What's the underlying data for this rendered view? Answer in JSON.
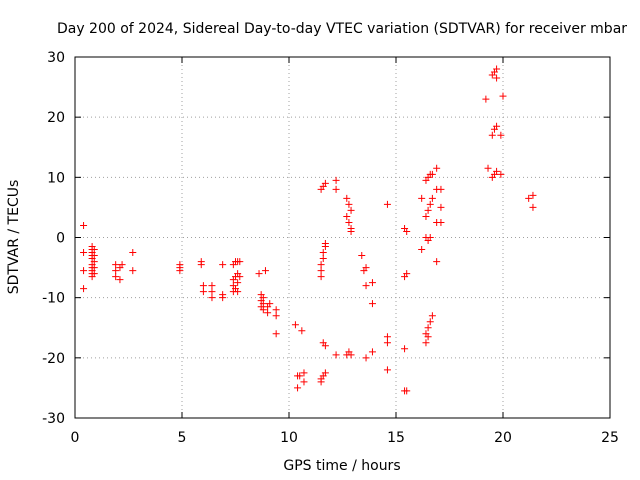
{
  "chart_data": {
    "type": "scatter",
    "title": "Day 200 of 2024, Sidereal Day-to-day VTEC variation (SDTVAR) for receiver mbar",
    "xlabel": "GPS time / hours",
    "ylabel": "SDTVAR / TECUs",
    "xlim": [
      0,
      25
    ],
    "ylim": [
      -30,
      30
    ],
    "xticks": [
      0,
      5,
      10,
      15,
      20,
      25
    ],
    "yticks": [
      -30,
      -20,
      -10,
      0,
      10,
      20,
      30
    ],
    "xtick_labels": [
      "0",
      "5",
      "10",
      "15",
      "20",
      "25"
    ],
    "ytick_labels": [
      "-30",
      "-20",
      "-10",
      "0",
      "10",
      "20",
      "30"
    ],
    "grid": true,
    "marker": "plus",
    "color": "#ff0000",
    "series": [
      {
        "name": "SDTVAR",
        "points": [
          [
            0.4,
            2.0
          ],
          [
            0.4,
            -2.5
          ],
          [
            0.4,
            -5.5
          ],
          [
            0.4,
            -8.5
          ],
          [
            0.8,
            -1.5
          ],
          [
            0.8,
            -2.0
          ],
          [
            0.8,
            -2.5
          ],
          [
            0.8,
            -3.0
          ],
          [
            0.8,
            -3.5
          ],
          [
            0.8,
            -4.5
          ],
          [
            0.8,
            -5.0
          ],
          [
            0.8,
            -5.5
          ],
          [
            0.8,
            -6.0
          ],
          [
            0.8,
            -6.5
          ],
          [
            0.9,
            -2.0
          ],
          [
            0.9,
            -3.0
          ],
          [
            0.9,
            -4.0
          ],
          [
            0.9,
            -5.0
          ],
          [
            0.9,
            -6.0
          ],
          [
            1.9,
            -4.5
          ],
          [
            1.9,
            -5.5
          ],
          [
            1.9,
            -6.5
          ],
          [
            2.1,
            -5.0
          ],
          [
            2.1,
            -7.0
          ],
          [
            2.2,
            -4.5
          ],
          [
            2.7,
            -2.5
          ],
          [
            2.7,
            -5.5
          ],
          [
            4.9,
            -4.5
          ],
          [
            4.9,
            -5.0
          ],
          [
            4.9,
            -5.5
          ],
          [
            5.9,
            -4.0
          ],
          [
            5.9,
            -4.5
          ],
          [
            6.0,
            -8.0
          ],
          [
            6.0,
            -9.0
          ],
          [
            6.4,
            -8.0
          ],
          [
            6.4,
            -9.0
          ],
          [
            6.4,
            -10.0
          ],
          [
            6.9,
            -4.5
          ],
          [
            6.9,
            -9.5
          ],
          [
            6.9,
            -10.0
          ],
          [
            7.4,
            -4.5
          ],
          [
            7.4,
            -7.0
          ],
          [
            7.4,
            -8.0
          ],
          [
            7.4,
            -9.0
          ],
          [
            7.5,
            -4.0
          ],
          [
            7.5,
            -6.5
          ],
          [
            7.5,
            -8.5
          ],
          [
            7.6,
            -4.0
          ],
          [
            7.6,
            -6.0
          ],
          [
            7.6,
            -7.5
          ],
          [
            7.6,
            -9.0
          ],
          [
            7.7,
            -4.0
          ],
          [
            7.7,
            -6.5
          ],
          [
            8.6,
            -6.0
          ],
          [
            8.7,
            -9.5
          ],
          [
            8.7,
            -10.5
          ],
          [
            8.7,
            -11.5
          ],
          [
            8.8,
            -10.0
          ],
          [
            8.8,
            -11.0
          ],
          [
            8.8,
            -12.0
          ],
          [
            8.9,
            -5.5
          ],
          [
            9.0,
            -11.5
          ],
          [
            9.0,
            -12.5
          ],
          [
            9.1,
            -11.0
          ],
          [
            9.4,
            -12.0
          ],
          [
            9.4,
            -13.0
          ],
          [
            9.4,
            -16.0
          ],
          [
            10.3,
            -14.5
          ],
          [
            10.4,
            -23.0
          ],
          [
            10.4,
            -25.0
          ],
          [
            10.5,
            -23.0
          ],
          [
            10.6,
            -15.5
          ],
          [
            10.7,
            -22.5
          ],
          [
            10.7,
            -24.0
          ],
          [
            11.5,
            -24.0
          ],
          [
            11.5,
            -23.5
          ],
          [
            11.5,
            -6.5
          ],
          [
            11.5,
            -5.5
          ],
          [
            11.5,
            -4.5
          ],
          [
            11.5,
            8.0
          ],
          [
            11.6,
            -23.0
          ],
          [
            11.6,
            -17.5
          ],
          [
            11.6,
            -3.5
          ],
          [
            11.6,
            -2.5
          ],
          [
            11.6,
            8.5
          ],
          [
            11.7,
            -22.5
          ],
          [
            11.7,
            -18.0
          ],
          [
            11.7,
            -1.5
          ],
          [
            11.7,
            -1.0
          ],
          [
            11.7,
            9.0
          ],
          [
            12.2,
            -19.5
          ],
          [
            12.2,
            8.0
          ],
          [
            12.2,
            9.5
          ],
          [
            12.7,
            -19.5
          ],
          [
            12.7,
            3.5
          ],
          [
            12.7,
            6.5
          ],
          [
            12.8,
            -19.0
          ],
          [
            12.8,
            2.5
          ],
          [
            12.8,
            5.5
          ],
          [
            12.9,
            -19.5
          ],
          [
            12.9,
            1.5
          ],
          [
            12.9,
            4.5
          ],
          [
            12.9,
            1.0
          ],
          [
            13.4,
            -3.0
          ],
          [
            13.5,
            -5.5
          ],
          [
            13.6,
            -20.0
          ],
          [
            13.6,
            -8.0
          ],
          [
            13.6,
            -5.0
          ],
          [
            13.9,
            -19.0
          ],
          [
            13.9,
            -7.5
          ],
          [
            13.9,
            -11.0
          ],
          [
            14.6,
            5.5
          ],
          [
            14.6,
            -16.5
          ],
          [
            14.6,
            -17.5
          ],
          [
            14.6,
            -22.0
          ],
          [
            15.4,
            -25.5
          ],
          [
            15.4,
            -18.5
          ],
          [
            15.4,
            -6.5
          ],
          [
            15.4,
            1.5
          ],
          [
            15.5,
            -25.5
          ],
          [
            15.5,
            -6.0
          ],
          [
            15.5,
            1.0
          ],
          [
            16.2,
            -2.0
          ],
          [
            16.2,
            6.5
          ],
          [
            16.4,
            -17.5
          ],
          [
            16.4,
            -16.0
          ],
          [
            16.4,
            0.0
          ],
          [
            16.4,
            3.5
          ],
          [
            16.4,
            9.5
          ],
          [
            16.5,
            -16.5
          ],
          [
            16.5,
            -15.0
          ],
          [
            16.5,
            -0.5
          ],
          [
            16.5,
            4.5
          ],
          [
            16.5,
            10.0
          ],
          [
            16.6,
            -14.0
          ],
          [
            16.6,
            0.0
          ],
          [
            16.6,
            5.5
          ],
          [
            16.6,
            10.5
          ],
          [
            16.7,
            -13.0
          ],
          [
            16.7,
            6.5
          ],
          [
            16.7,
            10.5
          ],
          [
            16.9,
            -4.0
          ],
          [
            16.9,
            11.5
          ],
          [
            16.9,
            2.5
          ],
          [
            16.9,
            8.0
          ],
          [
            17.1,
            2.5
          ],
          [
            17.1,
            8.0
          ],
          [
            17.1,
            5.0
          ],
          [
            19.2,
            23.0
          ],
          [
            19.3,
            11.5
          ],
          [
            19.5,
            10.0
          ],
          [
            19.5,
            17.0
          ],
          [
            19.5,
            27.0
          ],
          [
            19.6,
            10.5
          ],
          [
            19.6,
            18.0
          ],
          [
            19.6,
            27.5
          ],
          [
            19.7,
            11.0
          ],
          [
            19.7,
            18.5
          ],
          [
            19.7,
            28.0
          ],
          [
            19.7,
            26.5
          ],
          [
            19.9,
            17.0
          ],
          [
            19.9,
            10.5
          ],
          [
            20.0,
            23.5
          ],
          [
            21.2,
            6.5
          ],
          [
            21.4,
            7.0
          ],
          [
            21.4,
            5.0
          ]
        ]
      }
    ]
  }
}
